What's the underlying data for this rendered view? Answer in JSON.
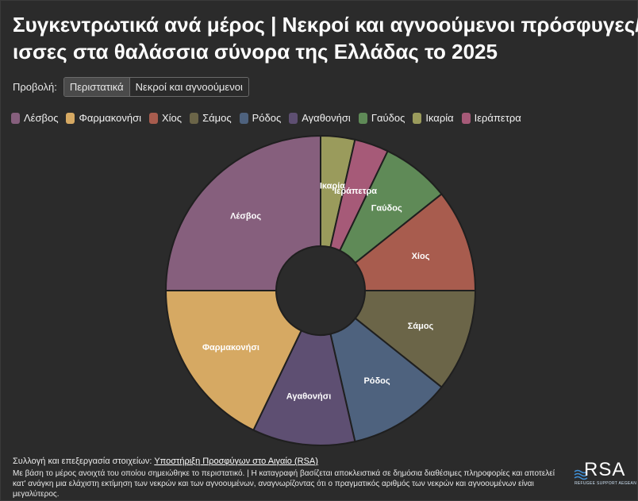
{
  "title": {
    "line1": "Συγκεντρωτικά ανά μέρος | Νεκροί και αγνοούμενοι πρόσφυγες/",
    "line2": "ισσες στα θαλάσσια σύνορα της Ελλάδας το 2025"
  },
  "view": {
    "label": "Προβολή:",
    "options": [
      "Περιστατικά",
      "Νεκροί και αγνοούμενοι"
    ],
    "selected": "Περιστατικά"
  },
  "chart_data": {
    "type": "pie",
    "donut": true,
    "labels": [
      "Ικαρία",
      "Ιεράπετρα",
      "Γαύδος",
      "Χίος",
      "Σάμος",
      "Ρόδος",
      "Αγαθονήσι",
      "Φαρμακονήσι",
      "Λέσβος"
    ],
    "values": [
      2,
      2,
      4,
      6,
      6,
      6,
      6,
      10,
      14
    ],
    "colors": [
      "#9a9b5c",
      "#a65a78",
      "#5f8a57",
      "#a85c4e",
      "#6b6548",
      "#4e627e",
      "#5e4f72",
      "#d6a963",
      "#865f7d"
    ],
    "legend": [
      "Λέσβος",
      "Φαρμακονήσι",
      "Χίος",
      "Σάμος",
      "Ρόδος",
      "Αγαθονήσι",
      "Γαύδος",
      "Ικαρία",
      "Ιεράπετρα"
    ],
    "legend_colors": [
      "#865f7d",
      "#d6a963",
      "#a85c4e",
      "#6b6548",
      "#4e627e",
      "#5e4f72",
      "#5f8a57",
      "#9a9b5c",
      "#a65a78"
    ],
    "legend_position": "top-left"
  },
  "footer": {
    "credit_prefix": "Συλλογή και επεξεργασία στοιχείων: ",
    "credit_link": "Υποστήριξη Προσφύγων στο Αιγαίο (RSA)",
    "note": "Με βάση το μέρος ανοιχτά του οποίου σημειώθηκε το περιστατικό. | Η καταγραφή βασίζεται αποκλειστικά σε δημόσια διαθέσιμες πληροφορίες και αποτελεί κατ' ανάγκη μια ελάχιστη εκτίμηση των νεκρών και των αγνοουμένων, αναγνωρίζοντας ότι ο πραγματικός αριθμός των νεκρών και αγνοουμένων είναι μεγαλύτερος."
  },
  "logo": {
    "text": "RSA",
    "subtitle": "REFUGEE SUPPORT AEGEAN"
  }
}
